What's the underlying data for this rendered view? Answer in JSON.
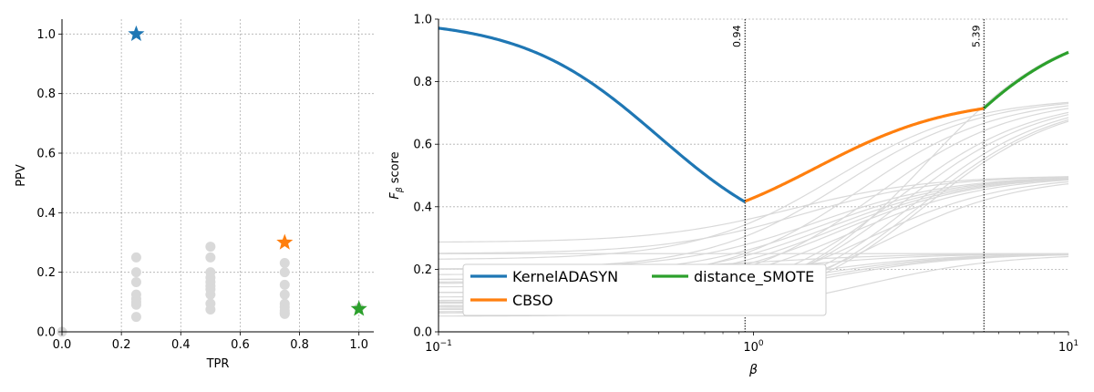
{
  "chart_data": [
    {
      "type": "scatter",
      "xlabel": "TPR",
      "ylabel": "PPV",
      "xlim": [
        0.0,
        1.05
      ],
      "ylim": [
        0.0,
        1.05
      ],
      "xticks": [
        "0.0",
        "0.2",
        "0.4",
        "0.6",
        "0.8",
        "1.0"
      ],
      "yticks": [
        "0.0",
        "0.2",
        "0.4",
        "0.6",
        "0.8",
        "1.0"
      ],
      "grid": true,
      "background_points": {
        "color": "#d9d9d9",
        "x": [
          0.0,
          0.25,
          0.25,
          0.25,
          0.25,
          0.25,
          0.25,
          0.25,
          0.25,
          0.5,
          0.5,
          0.5,
          0.5,
          0.5,
          0.5,
          0.5,
          0.5,
          0.5,
          0.5,
          0.75,
          0.75,
          0.75,
          0.75,
          0.75,
          0.75,
          0.75,
          0.75,
          0.75,
          1.0
        ],
        "y": [
          0.0,
          0.25,
          0.2,
          0.167,
          0.125,
          0.111,
          0.1,
          0.091,
          0.05,
          0.286,
          0.25,
          0.2,
          0.182,
          0.167,
          0.154,
          0.143,
          0.125,
          0.095,
          0.075,
          0.231,
          0.2,
          0.158,
          0.125,
          0.094,
          0.083,
          0.071,
          0.064,
          0.06,
          0.08
        ]
      },
      "highlighted": [
        {
          "x": 0.25,
          "y": 1.0,
          "color": "#1f77b4",
          "marker": "star"
        },
        {
          "x": 0.75,
          "y": 0.3,
          "color": "#ff7f0e",
          "marker": "star"
        },
        {
          "x": 1.0,
          "y": 0.077,
          "color": "#2ca02c",
          "marker": "star"
        }
      ]
    },
    {
      "type": "line",
      "xlabel": "β",
      "ylabel": "F",
      "ylabel_sub": "β",
      "ylabel_suffix": " score",
      "xscale": "log",
      "xlim": [
        0.1,
        10
      ],
      "ylim": [
        0.0,
        1.0
      ],
      "xticks": [
        {
          "value": 0.1,
          "base": "10",
          "exp": "−1"
        },
        {
          "value": 1,
          "base": "10",
          "exp": "0"
        },
        {
          "value": 10,
          "base": "10",
          "exp": "1"
        }
      ],
      "yticks": [
        "0.0",
        "0.2",
        "0.4",
        "0.6",
        "0.8",
        "1.0"
      ],
      "grid": "y",
      "vlines": [
        {
          "x": 0.94,
          "label": "0.94"
        },
        {
          "x": 5.39,
          "label": "5.39"
        }
      ],
      "legend_position": "lower-center",
      "series": [
        {
          "name": "KernelADASYN",
          "color": "#1f77b4",
          "tpr": 0.25,
          "ppv": 1.0,
          "x_range": [
            0.1,
            0.94
          ]
        },
        {
          "name": "CBSO",
          "color": "#ff7f0e",
          "tpr": 0.75,
          "ppv": 0.3,
          "x_range": [
            0.94,
            5.39
          ]
        },
        {
          "name": "distance_SMOTE",
          "color": "#2ca02c",
          "tpr": 1.0,
          "ppv": 0.077,
          "x_range": [
            5.39,
            10
          ]
        }
      ],
      "background_color": "#d9d9d9"
    }
  ]
}
